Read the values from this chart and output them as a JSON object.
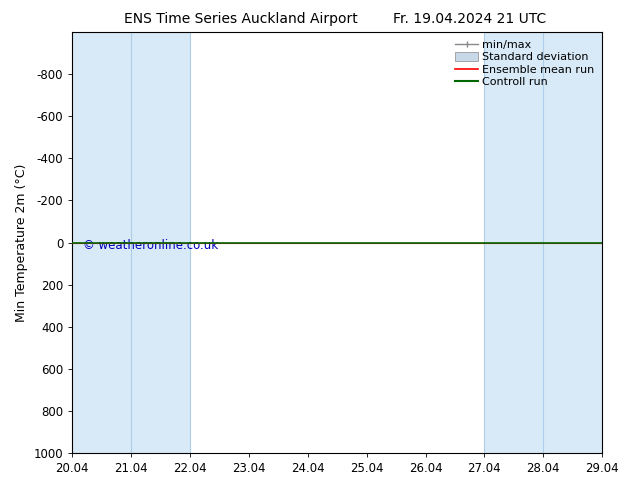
{
  "title_left": "ENS Time Series Auckland Airport",
  "title_right": "Fr. 19.04.2024 21 UTC",
  "ylabel": "Min Temperature 2m (°C)",
  "ylim_top": -1000,
  "ylim_bottom": 1000,
  "y_ticks": [
    -800,
    -600,
    -400,
    -200,
    0,
    200,
    400,
    600,
    800,
    1000
  ],
  "x_tick_labels": [
    "20.04",
    "21.04",
    "22.04",
    "23.04",
    "24.04",
    "25.04",
    "26.04",
    "27.04",
    "28.04",
    "29.04"
  ],
  "x_tick_positions": [
    0,
    1,
    2,
    3,
    4,
    5,
    6,
    7,
    8,
    9
  ],
  "shaded_bands": [
    {
      "x_start": 0,
      "x_end": 1
    },
    {
      "x_start": 1,
      "x_end": 2
    },
    {
      "x_start": 7,
      "x_end": 8
    },
    {
      "x_start": 8,
      "x_end": 9
    }
  ],
  "shade_color": "#d8eaf7",
  "shade_edge_color": "#aecde8",
  "control_run_y": 0,
  "control_run_color": "#006600",
  "ensemble_mean_color": "#ff0000",
  "bg_color": "#ffffff",
  "plot_bg_color": "#ffffff",
  "watermark_text": "© weatheronline.co.uk",
  "watermark_color": "#0000bb",
  "legend_items": [
    "min/max",
    "Standard deviation",
    "Ensemble mean run",
    "Controll run"
  ],
  "legend_colors_line": [
    "#888888",
    "#aaaaaa",
    "#ff0000",
    "#006600"
  ],
  "title_fontsize": 10,
  "axis_label_fontsize": 9,
  "tick_fontsize": 8.5,
  "legend_fontsize": 8
}
